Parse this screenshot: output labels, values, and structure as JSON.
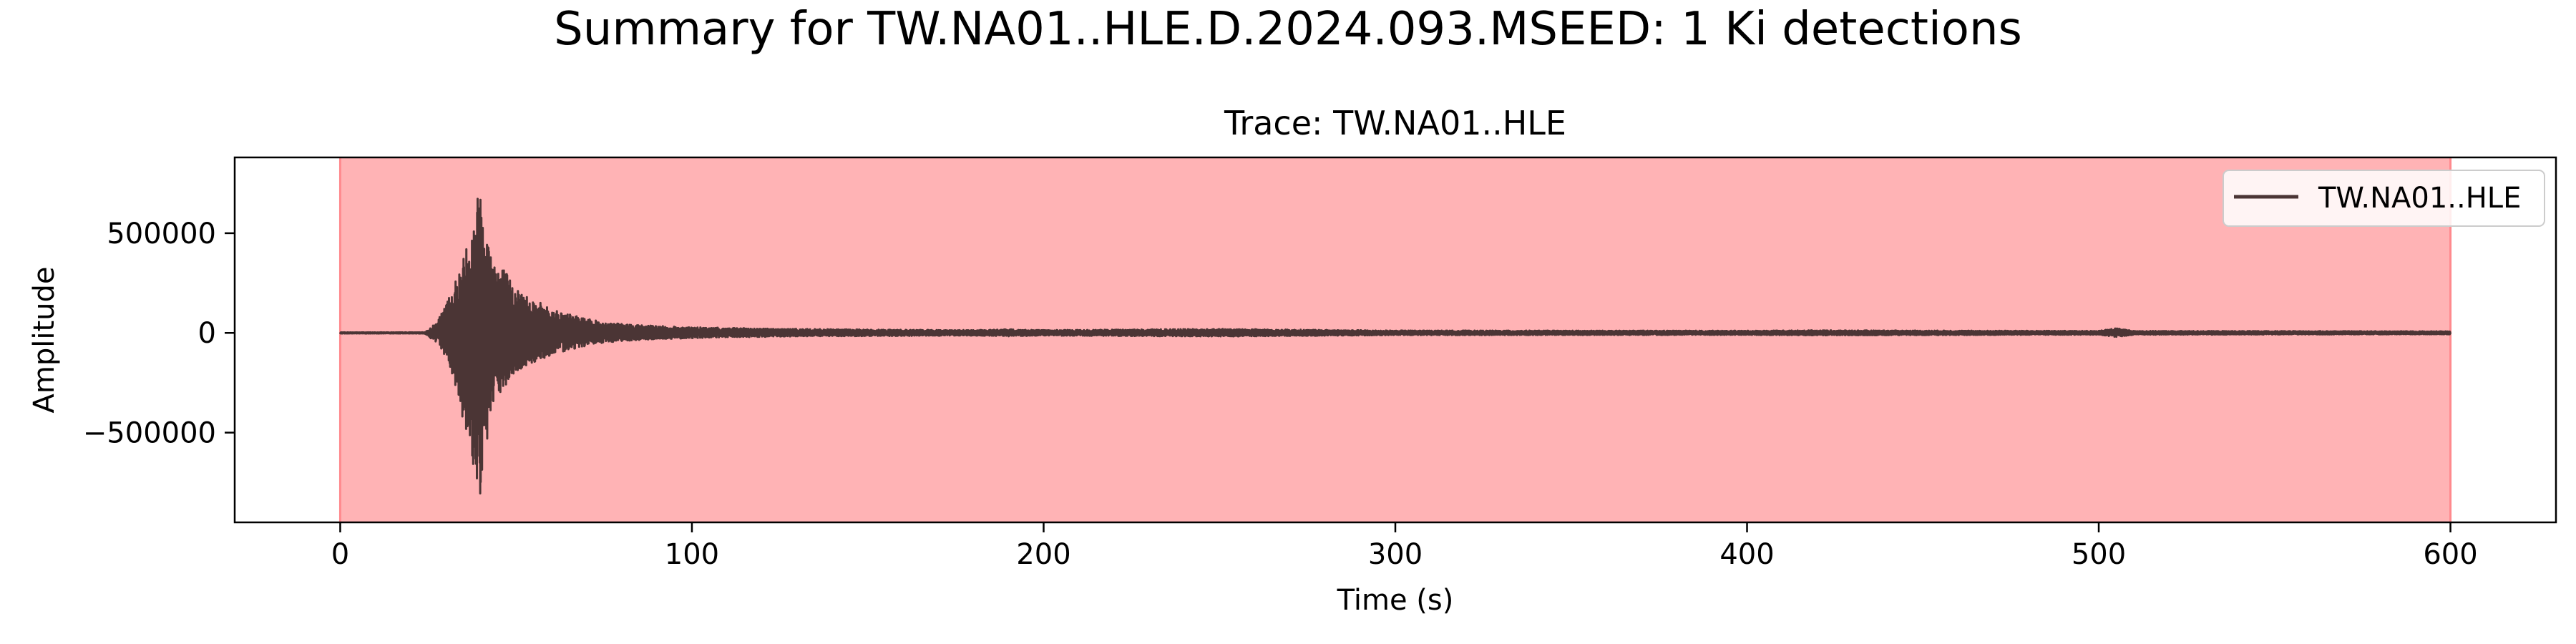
{
  "figure": {
    "suptitle": "Summary for TW.NA01..HLE.D.2024.093.MSEED: 1 Ki detections"
  },
  "chart_data": {
    "type": "line",
    "title": "Trace: TW.NA01..HLE",
    "xlabel": "Time (s)",
    "ylabel": "Amplitude",
    "xlim": [
      -30,
      630
    ],
    "ylim": [
      -950000,
      880000
    ],
    "xticks": [
      0,
      100,
      200,
      300,
      400,
      500,
      600
    ],
    "yticks": [
      500000,
      0,
      -500000
    ],
    "ytick_labels": [
      "500000",
      "0",
      "−500000"
    ],
    "grid": false,
    "legend": "top-right",
    "detections": [
      {
        "start": 0,
        "end": 600,
        "color": "#ff8a8e"
      }
    ],
    "series": [
      {
        "name": "TW.NA01..HLE",
        "color": "#4b3535",
        "envelope": {
          "t": [
            0,
            24,
            26,
            28,
            30,
            32,
            34,
            36,
            38,
            40,
            41,
            42,
            44,
            46,
            48,
            50,
            55,
            60,
            65,
            70,
            75,
            80,
            90,
            100,
            110,
            120,
            140,
            160,
            180,
            190,
            200,
            250,
            280,
            300,
            400,
            420,
            500,
            505,
            510,
            600
          ],
          "max": [
            3000,
            3000,
            30000,
            70000,
            140000,
            240000,
            320000,
            450000,
            600000,
            790000,
            700000,
            480000,
            380000,
            350000,
            280000,
            230000,
            170000,
            120000,
            95000,
            70000,
            55000,
            45000,
            35000,
            28000,
            25000,
            22000,
            18000,
            16000,
            14000,
            18000,
            14000,
            20000,
            15000,
            12000,
            11000,
            13000,
            10000,
            24000,
            10000,
            8000
          ],
          "min": [
            -3000,
            -3000,
            -30000,
            -60000,
            -120000,
            -220000,
            -340000,
            -560000,
            -700000,
            -860000,
            -720000,
            -500000,
            -360000,
            -300000,
            -250000,
            -200000,
            -150000,
            -110000,
            -85000,
            -65000,
            -50000,
            -40000,
            -32000,
            -26000,
            -22000,
            -20000,
            -16000,
            -15000,
            -13000,
            -17000,
            -13000,
            -18000,
            -14000,
            -11000,
            -10000,
            -12000,
            -9000,
            -20000,
            -9000,
            -7000
          ]
        }
      }
    ]
  }
}
